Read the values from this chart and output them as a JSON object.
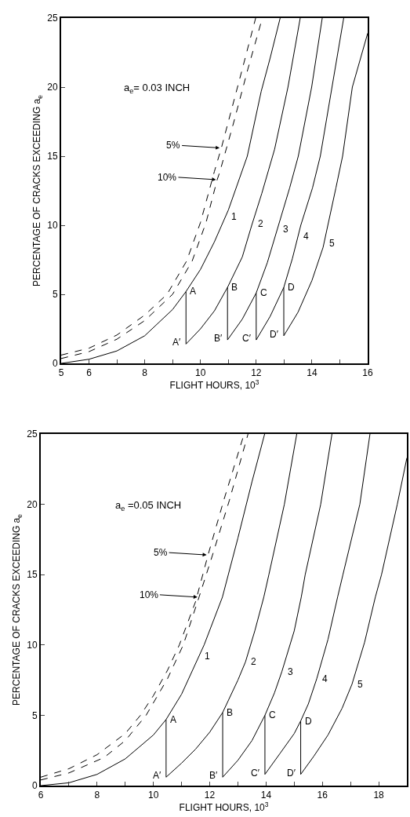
{
  "chart_data": [
    {
      "type": "line",
      "xlabel": "FLIGHT HOURS, 10$^{3}$",
      "ylabel": "PERCENTAGE OF CRACKS EXCEEDING a$_{e}$",
      "xlim": [
        5,
        16
      ],
      "xticks": [
        5,
        6,
        {
          "value": 7,
          "label": null
        },
        8,
        {
          "value": 9,
          "label": null
        },
        10,
        {
          "value": 11,
          "label": null
        },
        12,
        {
          "value": 13,
          "label": null
        },
        14,
        {
          "value": 15,
          "label": null
        },
        16
      ],
      "ylim": [
        0,
        25
      ],
      "yticks": [
        0,
        5,
        10,
        15,
        20,
        25
      ],
      "series": [
        {
          "color": "#000000",
          "line_style": "dashed",
          "x": [
            5,
            6,
            7,
            8,
            8.8,
            9.5,
            10,
            10.5,
            10.75,
            11,
            11.5,
            11.98
          ],
          "values": [
            0.6,
            1.1,
            2.05,
            3.5,
            5,
            7.4,
            10.2,
            13.9,
            15.6,
            17.5,
            21.3,
            25
          ]
        },
        {
          "color": "#000000",
          "line_style": "dashed",
          "x": [
            5,
            6,
            7,
            8,
            9,
            9.7,
            10.2,
            10.6,
            10.7,
            11.2,
            11.7,
            12.22
          ],
          "values": [
            0.35,
            0.85,
            1.75,
            3.1,
            5,
            7.4,
            10.2,
            13.3,
            13.9,
            17.5,
            21.3,
            25
          ]
        },
        {
          "color": "#000000",
          "line_style": "solid",
          "x": [
            5,
            6,
            7,
            8,
            9,
            9.48,
            10,
            10.5,
            11,
            11.68,
            12.18,
            12.5,
            12.86
          ],
          "values": [
            0,
            0.3,
            0.9,
            2,
            3.9,
            5.2,
            6.8,
            8.8,
            11.1,
            15,
            19.7,
            22.1,
            25
          ]
        },
        {
          "color": "#000000",
          "line_style": "solid",
          "x": [
            9.48,
            9.48,
            10,
            10.5,
            10.97,
            11.5,
            11.84,
            12.2,
            12.66,
            13.14,
            13.58
          ],
          "values": [
            5.2,
            1.4,
            2.5,
            3.8,
            5.5,
            7.7,
            10,
            12.3,
            15.5,
            20,
            25
          ]
        },
        {
          "color": "#000000",
          "line_style": "solid",
          "x": [
            10.97,
            10.97,
            11.5,
            12,
            12.4,
            12.8,
            13.2,
            13.51,
            13.99,
            14.37
          ],
          "values": [
            5.5,
            1.7,
            3.2,
            5.1,
            7.3,
            10,
            12.7,
            15,
            20,
            25
          ]
        },
        {
          "color": "#000000",
          "line_style": "solid",
          "x": [
            12,
            12,
            12.5,
            12.99,
            13.3,
            13.6,
            14.02,
            14.3,
            14.72,
            15.14
          ],
          "values": [
            5.1,
            1.7,
            3.4,
            5.5,
            7.6,
            10,
            12.7,
            15,
            20,
            25
          ]
        },
        {
          "color": "#000000",
          "line_style": "solid",
          "x": [
            12.99,
            12.99,
            13.5,
            14,
            14.4,
            14.86,
            15.1,
            15.45,
            16
          ],
          "values": [
            5.5,
            2,
            3.7,
            6,
            8.4,
            12.7,
            15,
            20,
            23.9
          ]
        }
      ],
      "annotations": [
        "a$_{e}$= 0.03 INCH",
        "5%",
        "10%",
        {
          "text": "1",
          "x": 10.9,
          "y": 10.6
        },
        {
          "text": "2",
          "x": 11.86,
          "y": 10.1
        },
        {
          "text": "3",
          "x": 12.76,
          "y": 9.7
        },
        {
          "text": "4",
          "x": 13.5,
          "y": 9.2
        },
        {
          "text": "5",
          "x": 14.43,
          "y": 8.7
        },
        {
          "text": "A",
          "x": 9.48,
          "y": 5.2
        },
        {
          "text": "B",
          "x": 10.97,
          "y": 5.5
        },
        {
          "text": "C",
          "x": 12,
          "y": 5.1
        },
        {
          "text": "D",
          "x": 12.99,
          "y": 5.5
        },
        {
          "text": "A′",
          "x": 9.48,
          "y": 1.4
        },
        {
          "text": "B′",
          "x": 10.97,
          "y": 1.7
        },
        {
          "text": "C′",
          "x": 12,
          "y": 1.7
        },
        {
          "text": "D′",
          "x": 12.99,
          "y": 2
        }
      ]
    },
    {
      "type": "line",
      "xlabel": "FLIGHT HOURS, 10$^{3}$",
      "ylabel": "PERCENTAGE OF CRACKS EXCEEDING a$_{e}$",
      "xlim": [
        6,
        19
      ],
      "xticks": [
        6,
        {
          "value": 7,
          "label": null
        },
        8,
        {
          "value": 9,
          "label": null
        },
        10,
        {
          "value": 11,
          "label": null
        },
        12,
        {
          "value": 13,
          "label": null
        },
        14,
        {
          "value": 15,
          "label": null
        },
        16,
        {
          "value": 17,
          "label": null
        },
        18
      ],
      "ylim": [
        0,
        25
      ],
      "yticks": [
        0,
        5,
        10,
        15,
        20,
        25
      ],
      "series": [
        {
          "color": "#000000",
          "line_style": "dashed",
          "x": [
            6,
            7,
            8,
            9,
            9.54,
            10,
            10.5,
            10.92,
            11.5,
            11.94,
            12.5,
            13.22
          ],
          "values": [
            0.6,
            1.2,
            2.2,
            3.7,
            5,
            6.4,
            8.2,
            10,
            13.1,
            16.4,
            20.3,
            25
          ]
        },
        {
          "color": "#000000",
          "line_style": "dashed",
          "x": [
            6,
            7,
            8.25,
            9,
            9.74,
            10.5,
            11.06,
            11.62,
            12.1,
            12.7,
            13.36
          ],
          "values": [
            0.4,
            0.9,
            2,
            3.2,
            5,
            7.6,
            10,
            13.4,
            16.4,
            20.3,
            25
          ]
        },
        {
          "color": "#000000",
          "line_style": "solid",
          "x": [
            6,
            7,
            8,
            9,
            10,
            10.45,
            11,
            11.8,
            12.45,
            13,
            13.5,
            13.95
          ],
          "values": [
            0,
            0.2,
            0.8,
            1.9,
            3.6,
            4.7,
            6.5,
            10,
            13.4,
            17.6,
            21.6,
            25
          ]
        },
        {
          "color": "#000000",
          "line_style": "solid",
          "x": [
            10.45,
            10.45,
            11,
            11.5,
            12,
            12.46,
            13,
            13.27,
            13.6,
            13.92,
            14.1,
            14.65,
            15.09
          ],
          "values": [
            4.7,
            0.6,
            1.6,
            2.6,
            3.8,
            5.2,
            7.5,
            8.8,
            11,
            13.4,
            15,
            20,
            25
          ]
        },
        {
          "color": "#000000",
          "line_style": "solid",
          "x": [
            12.46,
            12.46,
            13,
            13.5,
            13.96,
            14.3,
            14.56,
            15,
            15.25,
            15.39,
            15.94,
            16.34
          ],
          "values": [
            5.2,
            0.6,
            1.8,
            3.2,
            5,
            6.6,
            8.1,
            11,
            13.4,
            15,
            20,
            25
          ]
        },
        {
          "color": "#000000",
          "line_style": "solid",
          "x": [
            13.96,
            13.96,
            14.5,
            15,
            15.23,
            15.5,
            15.8,
            16.2,
            16.54,
            16.73,
            17.33,
            17.69
          ],
          "values": [
            5,
            0.8,
            2.3,
            3.7,
            4.6,
            5.8,
            7.6,
            10.4,
            13.4,
            15,
            20,
            25
          ]
        },
        {
          "color": "#000000",
          "line_style": "solid",
          "x": [
            15.23,
            15.23,
            15.7,
            16.2,
            16.7,
            17.05,
            17.5,
            17.88,
            18.1,
            18.66,
            19
          ],
          "values": [
            4.6,
            0.8,
            2.1,
            3.6,
            5.5,
            7.2,
            10.2,
            13.4,
            15,
            20,
            23.3
          ]
        }
      ],
      "annotations": [
        "a$_{e}$ =0.05 INCH",
        "5%",
        "10%",
        {
          "text": "1",
          "x": 11.62,
          "y": 9.2
        },
        {
          "text": "2",
          "x": 13.27,
          "y": 8.8
        },
        {
          "text": "3",
          "x": 14.56,
          "y": 8.1
        },
        {
          "text": "4",
          "x": 15.8,
          "y": 7.6
        },
        {
          "text": "5",
          "x": 17.05,
          "y": 7.2
        },
        {
          "text": "A",
          "x": 10.45,
          "y": 4.7
        },
        {
          "text": "B",
          "x": 12.46,
          "y": 5.2
        },
        {
          "text": "C",
          "x": 13.96,
          "y": 5
        },
        {
          "text": "D",
          "x": 15.23,
          "y": 4.6
        },
        {
          "text": "A′",
          "x": 10.45,
          "y": 0.6
        },
        {
          "text": "B′",
          "x": 12.46,
          "y": 0.6
        },
        {
          "text": "C′",
          "x": 13.96,
          "y": 0.8
        },
        {
          "text": "D′",
          "x": 15.23,
          "y": 0.8
        }
      ]
    }
  ]
}
